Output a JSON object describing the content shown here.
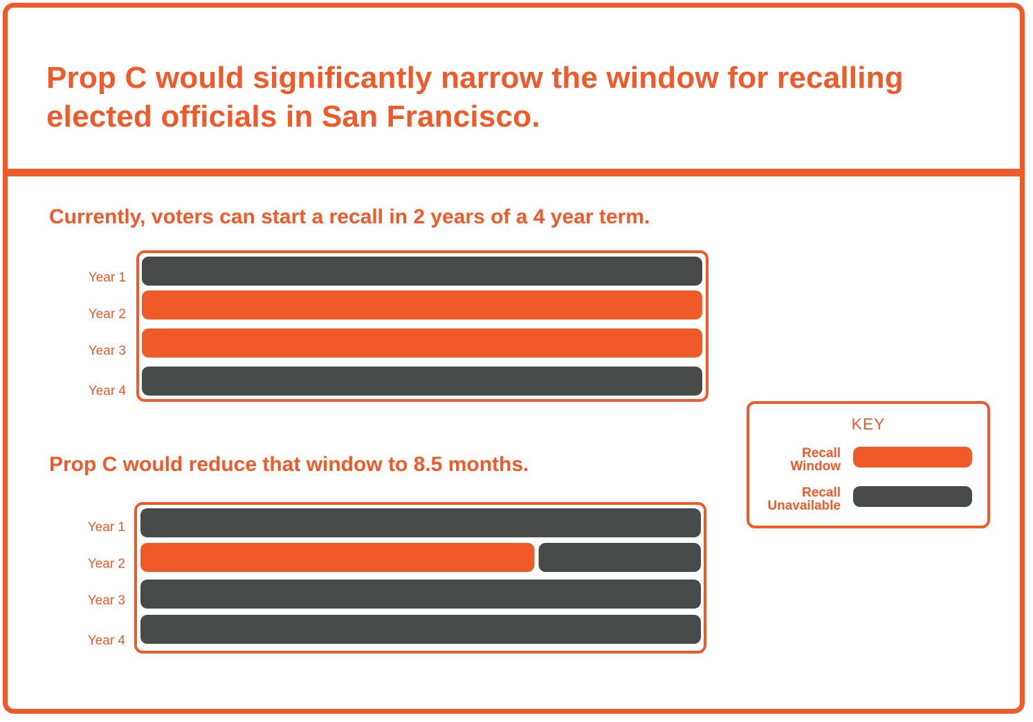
{
  "title": "Prop C would significantly narrow the window for recalling elected officials in San Francisco.",
  "colors": {
    "accent": "#f05a28",
    "recall_window": "#f05a28",
    "recall_unavailable": "#484a4a"
  },
  "key": {
    "title": "KEY",
    "items": [
      {
        "label_line1": "Recall",
        "label_line2": "Window",
        "status": "recall_window"
      },
      {
        "label_line1": "Recall",
        "label_line2": "Unavailable",
        "status": "recall_unavailable"
      }
    ]
  },
  "chart_data": [
    {
      "type": "bar",
      "subtitle": "Currently, voters can start a recall in 2 years of a 4 year term.",
      "categories": [
        "Year 1",
        "Year 2",
        "Year 3",
        "Year 4"
      ],
      "unit": "months",
      "months_per_year": 12,
      "segments": [
        [
          {
            "months": 12,
            "status": "recall_unavailable"
          }
        ],
        [
          {
            "months": 12,
            "status": "recall_window"
          }
        ],
        [
          {
            "months": 12,
            "status": "recall_window"
          }
        ],
        [
          {
            "months": 12,
            "status": "recall_unavailable"
          }
        ]
      ]
    },
    {
      "type": "bar",
      "subtitle": "Prop C would reduce that window to 8.5 months.",
      "categories": [
        "Year 1",
        "Year 2",
        "Year 3",
        "Year 4"
      ],
      "unit": "months",
      "months_per_year": 12,
      "segments": [
        [
          {
            "months": 12,
            "status": "recall_unavailable"
          }
        ],
        [
          {
            "months": 8.5,
            "status": "recall_window"
          },
          {
            "months": 3.5,
            "status": "recall_unavailable"
          }
        ],
        [
          {
            "months": 12,
            "status": "recall_unavailable"
          }
        ],
        [
          {
            "months": 12,
            "status": "recall_unavailable"
          }
        ]
      ]
    }
  ]
}
